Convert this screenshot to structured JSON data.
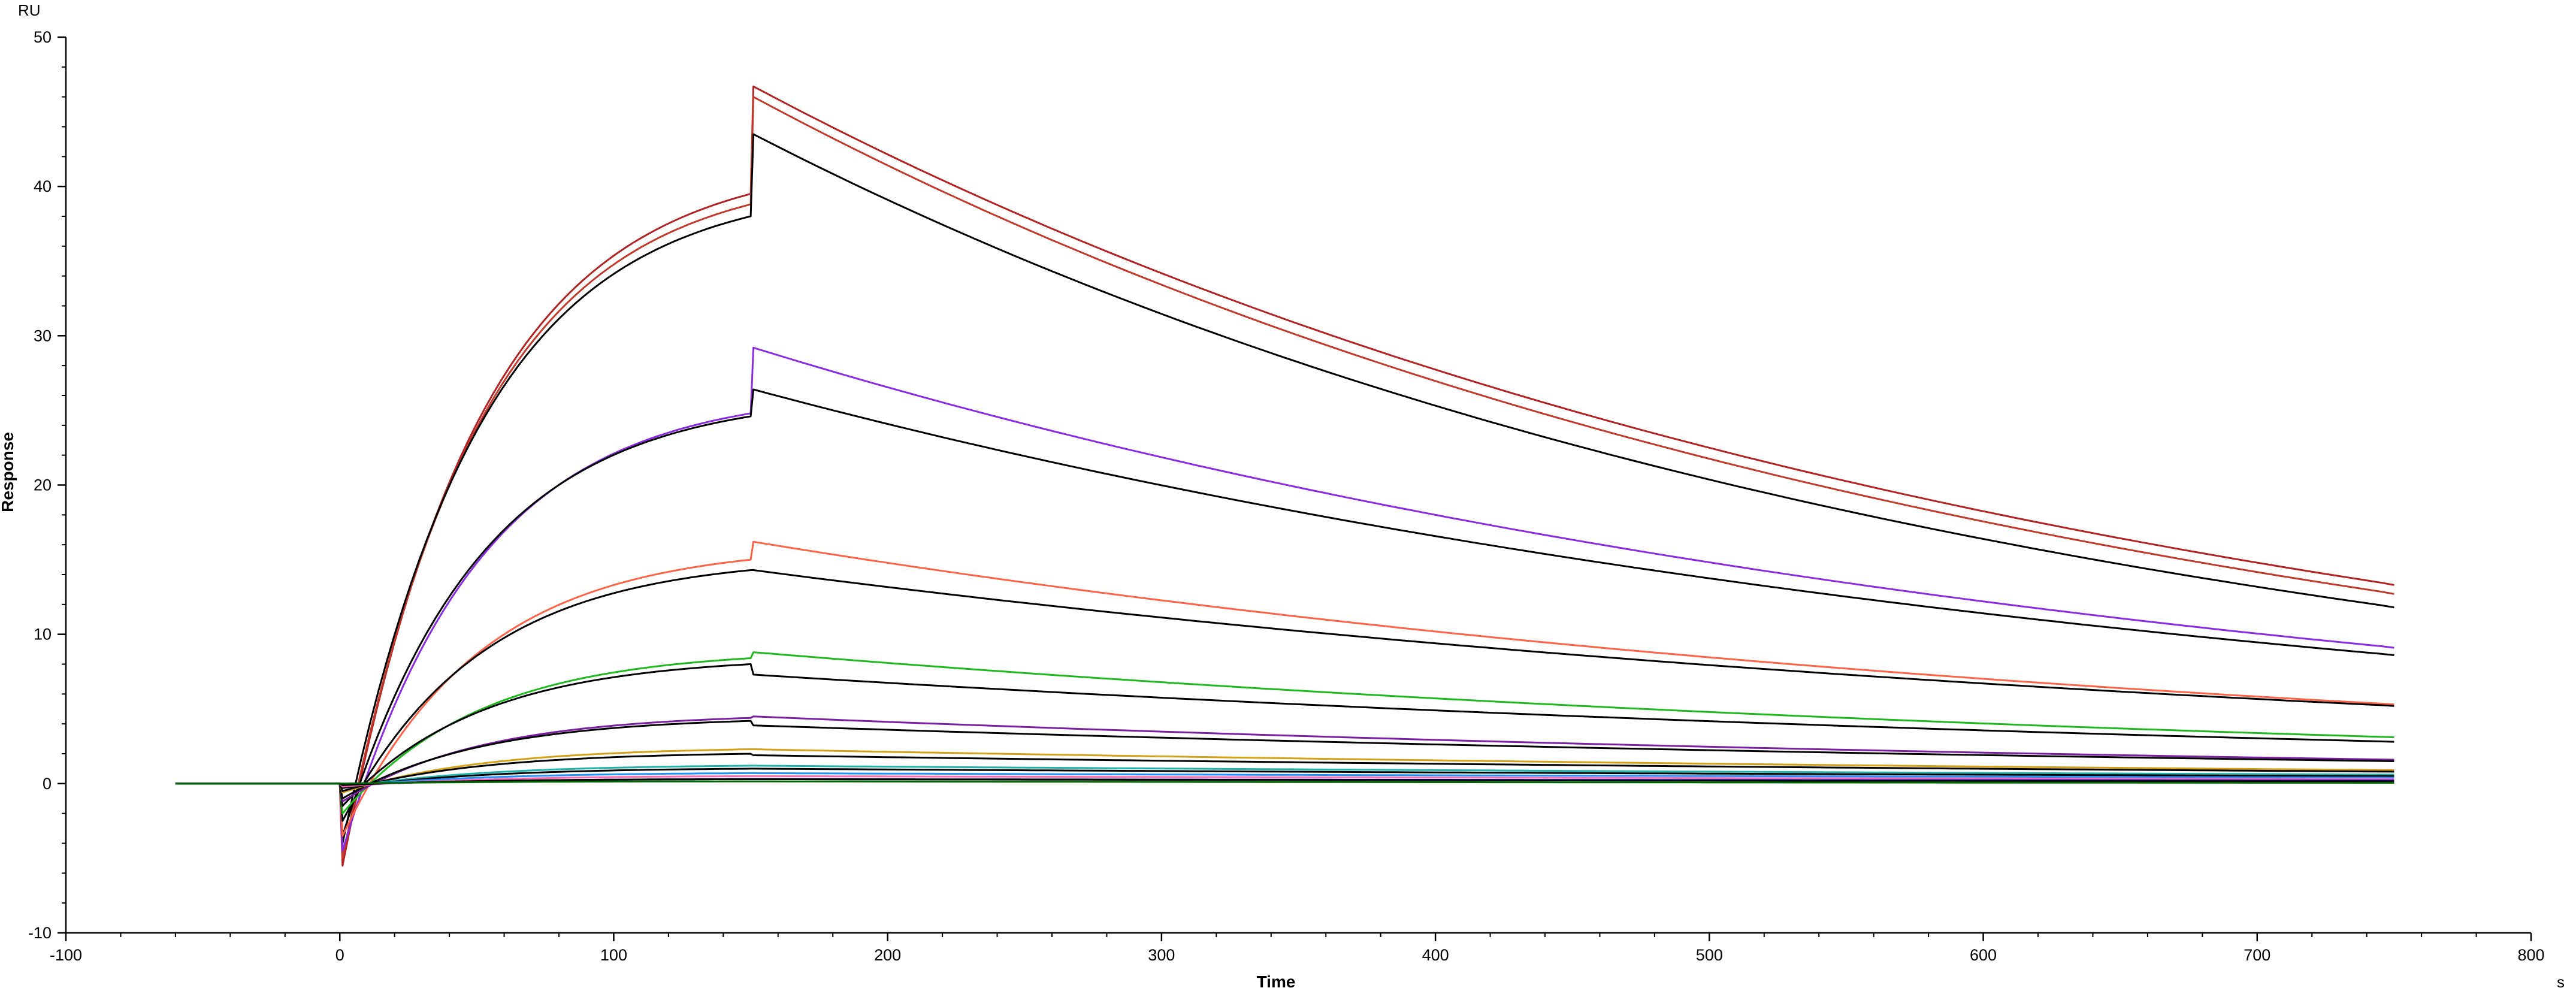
{
  "chart_data": {
    "type": "line",
    "xlabel": "Time",
    "ylabel": "Response",
    "x_unit": "s",
    "y_unit": "RU",
    "xlim": [
      -100,
      800
    ],
    "ylim": [
      -10,
      50
    ],
    "x_ticks": [
      -100,
      0,
      100,
      200,
      300,
      400,
      500,
      600,
      700,
      800
    ],
    "y_ticks": [
      -10,
      0,
      10,
      20,
      30,
      40,
      50
    ],
    "grid": false,
    "legend": "none",
    "sensorgram_phases": {
      "baseline_start": -60,
      "injection_start": 0,
      "injection_end": 150,
      "dissociation_end": 750
    },
    "series": [
      {
        "type": "measured",
        "color": "#b22222",
        "dip": -5.5,
        "assoc_end": 39.5,
        "diss_start": 46.7,
        "diss_end": 13.3,
        "width": 3
      },
      {
        "type": "measured",
        "color": "#c0392b",
        "dip": -5.0,
        "assoc_end": 38.8,
        "diss_start": 46.0,
        "diss_end": 12.7,
        "width": 3
      },
      {
        "type": "fit",
        "color": "#000000",
        "dip": -4.0,
        "assoc_end": 38.0,
        "diss_start": 43.5,
        "diss_end": 11.8,
        "width": 3
      },
      {
        "type": "measured",
        "color": "#8a2be2",
        "dip": -4.5,
        "assoc_end": 24.8,
        "diss_start": 29.2,
        "diss_end": 9.1,
        "width": 3
      },
      {
        "type": "fit",
        "color": "#000000",
        "dip": -3.5,
        "assoc_end": 24.6,
        "diss_start": 26.4,
        "diss_end": 8.6,
        "width": 3
      },
      {
        "type": "measured",
        "color": "#ff6347",
        "dip": -3.5,
        "assoc_end": 15.0,
        "diss_start": 16.2,
        "diss_end": 5.3,
        "width": 3
      },
      {
        "type": "fit",
        "color": "#000000",
        "dip": -2.5,
        "assoc_end": 14.3,
        "diss_start": 14.3,
        "diss_end": 5.2,
        "width": 3
      },
      {
        "type": "measured",
        "color": "#1fb81f",
        "dip": -2.0,
        "assoc_end": 8.4,
        "diss_start": 8.8,
        "diss_end": 3.1,
        "width": 3
      },
      {
        "type": "fit",
        "color": "#000000",
        "dip": -1.5,
        "assoc_end": 8.0,
        "diss_start": 7.3,
        "diss_end": 2.8,
        "width": 3
      },
      {
        "type": "measured",
        "color": "#7b1fa2",
        "dip": -1.2,
        "assoc_end": 4.4,
        "diss_start": 4.5,
        "diss_end": 1.6,
        "width": 3
      },
      {
        "type": "fit",
        "color": "#000000",
        "dip": -1.0,
        "assoc_end": 4.2,
        "diss_start": 3.9,
        "diss_end": 1.5,
        "width": 3
      },
      {
        "type": "measured",
        "color": "#d4a017",
        "dip": -0.6,
        "assoc_end": 2.3,
        "diss_start": 2.3,
        "diss_end": 0.9,
        "width": 3
      },
      {
        "type": "fit",
        "color": "#000000",
        "dip": -0.5,
        "assoc_end": 2.0,
        "diss_start": 1.9,
        "diss_end": 0.8,
        "width": 3
      },
      {
        "type": "measured",
        "color": "#20b2aa",
        "dip": -0.3,
        "assoc_end": 1.2,
        "diss_start": 1.2,
        "diss_end": 0.6,
        "width": 3
      },
      {
        "type": "fit",
        "color": "#000000",
        "dip": -0.3,
        "assoc_end": 1.0,
        "diss_start": 1.0,
        "diss_end": 0.5,
        "width": 3
      },
      {
        "type": "measured",
        "color": "#1e90ff",
        "dip": -0.2,
        "assoc_end": 0.7,
        "diss_start": 0.7,
        "diss_end": 0.4,
        "width": 3
      },
      {
        "type": "measured",
        "color": "#ff69b4",
        "dip": -0.2,
        "assoc_end": 0.5,
        "diss_start": 0.5,
        "diss_end": 0.3,
        "width": 3
      },
      {
        "type": "measured",
        "color": "#0000cd",
        "dip": -0.1,
        "assoc_end": 0.3,
        "diss_start": 0.3,
        "diss_end": 0.2,
        "width": 3
      },
      {
        "type": "fit",
        "color": "#000000",
        "dip": -0.1,
        "assoc_end": 0.3,
        "diss_start": 0.3,
        "diss_end": 0.15,
        "width": 3
      },
      {
        "type": "measured",
        "color": "#006400",
        "dip": 0.0,
        "assoc_end": 0.15,
        "diss_start": 0.15,
        "diss_end": 0.05,
        "width": 3
      }
    ]
  }
}
